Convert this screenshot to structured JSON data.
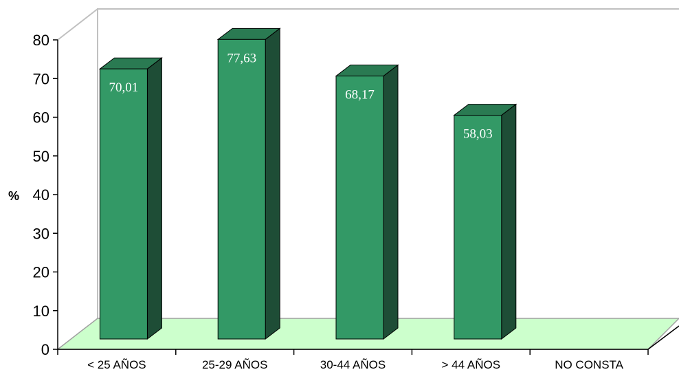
{
  "chart_data": {
    "type": "bar",
    "categories": [
      "< 25 AÑOS",
      "25-29 AÑOS",
      "30-44 AÑOS",
      "> 44 AÑOS",
      "NO CONSTA"
    ],
    "values": [
      70.01,
      77.63,
      68.17,
      58.03,
      null
    ],
    "data_labels": [
      "70,01",
      "77,63",
      "68,17",
      "58,03",
      ""
    ],
    "ylabel": "%",
    "ylim": [
      0,
      80
    ],
    "yticks": [
      0,
      10,
      20,
      30,
      40,
      50,
      60,
      70,
      80
    ],
    "grid": false,
    "legend": "none",
    "style": "3d",
    "colors": {
      "bar_front": "#339966",
      "bar_top": "#2a7a52",
      "bar_side": "#1e4d36",
      "floor": "#ccffcc",
      "walls": "#c0c0c0"
    }
  }
}
